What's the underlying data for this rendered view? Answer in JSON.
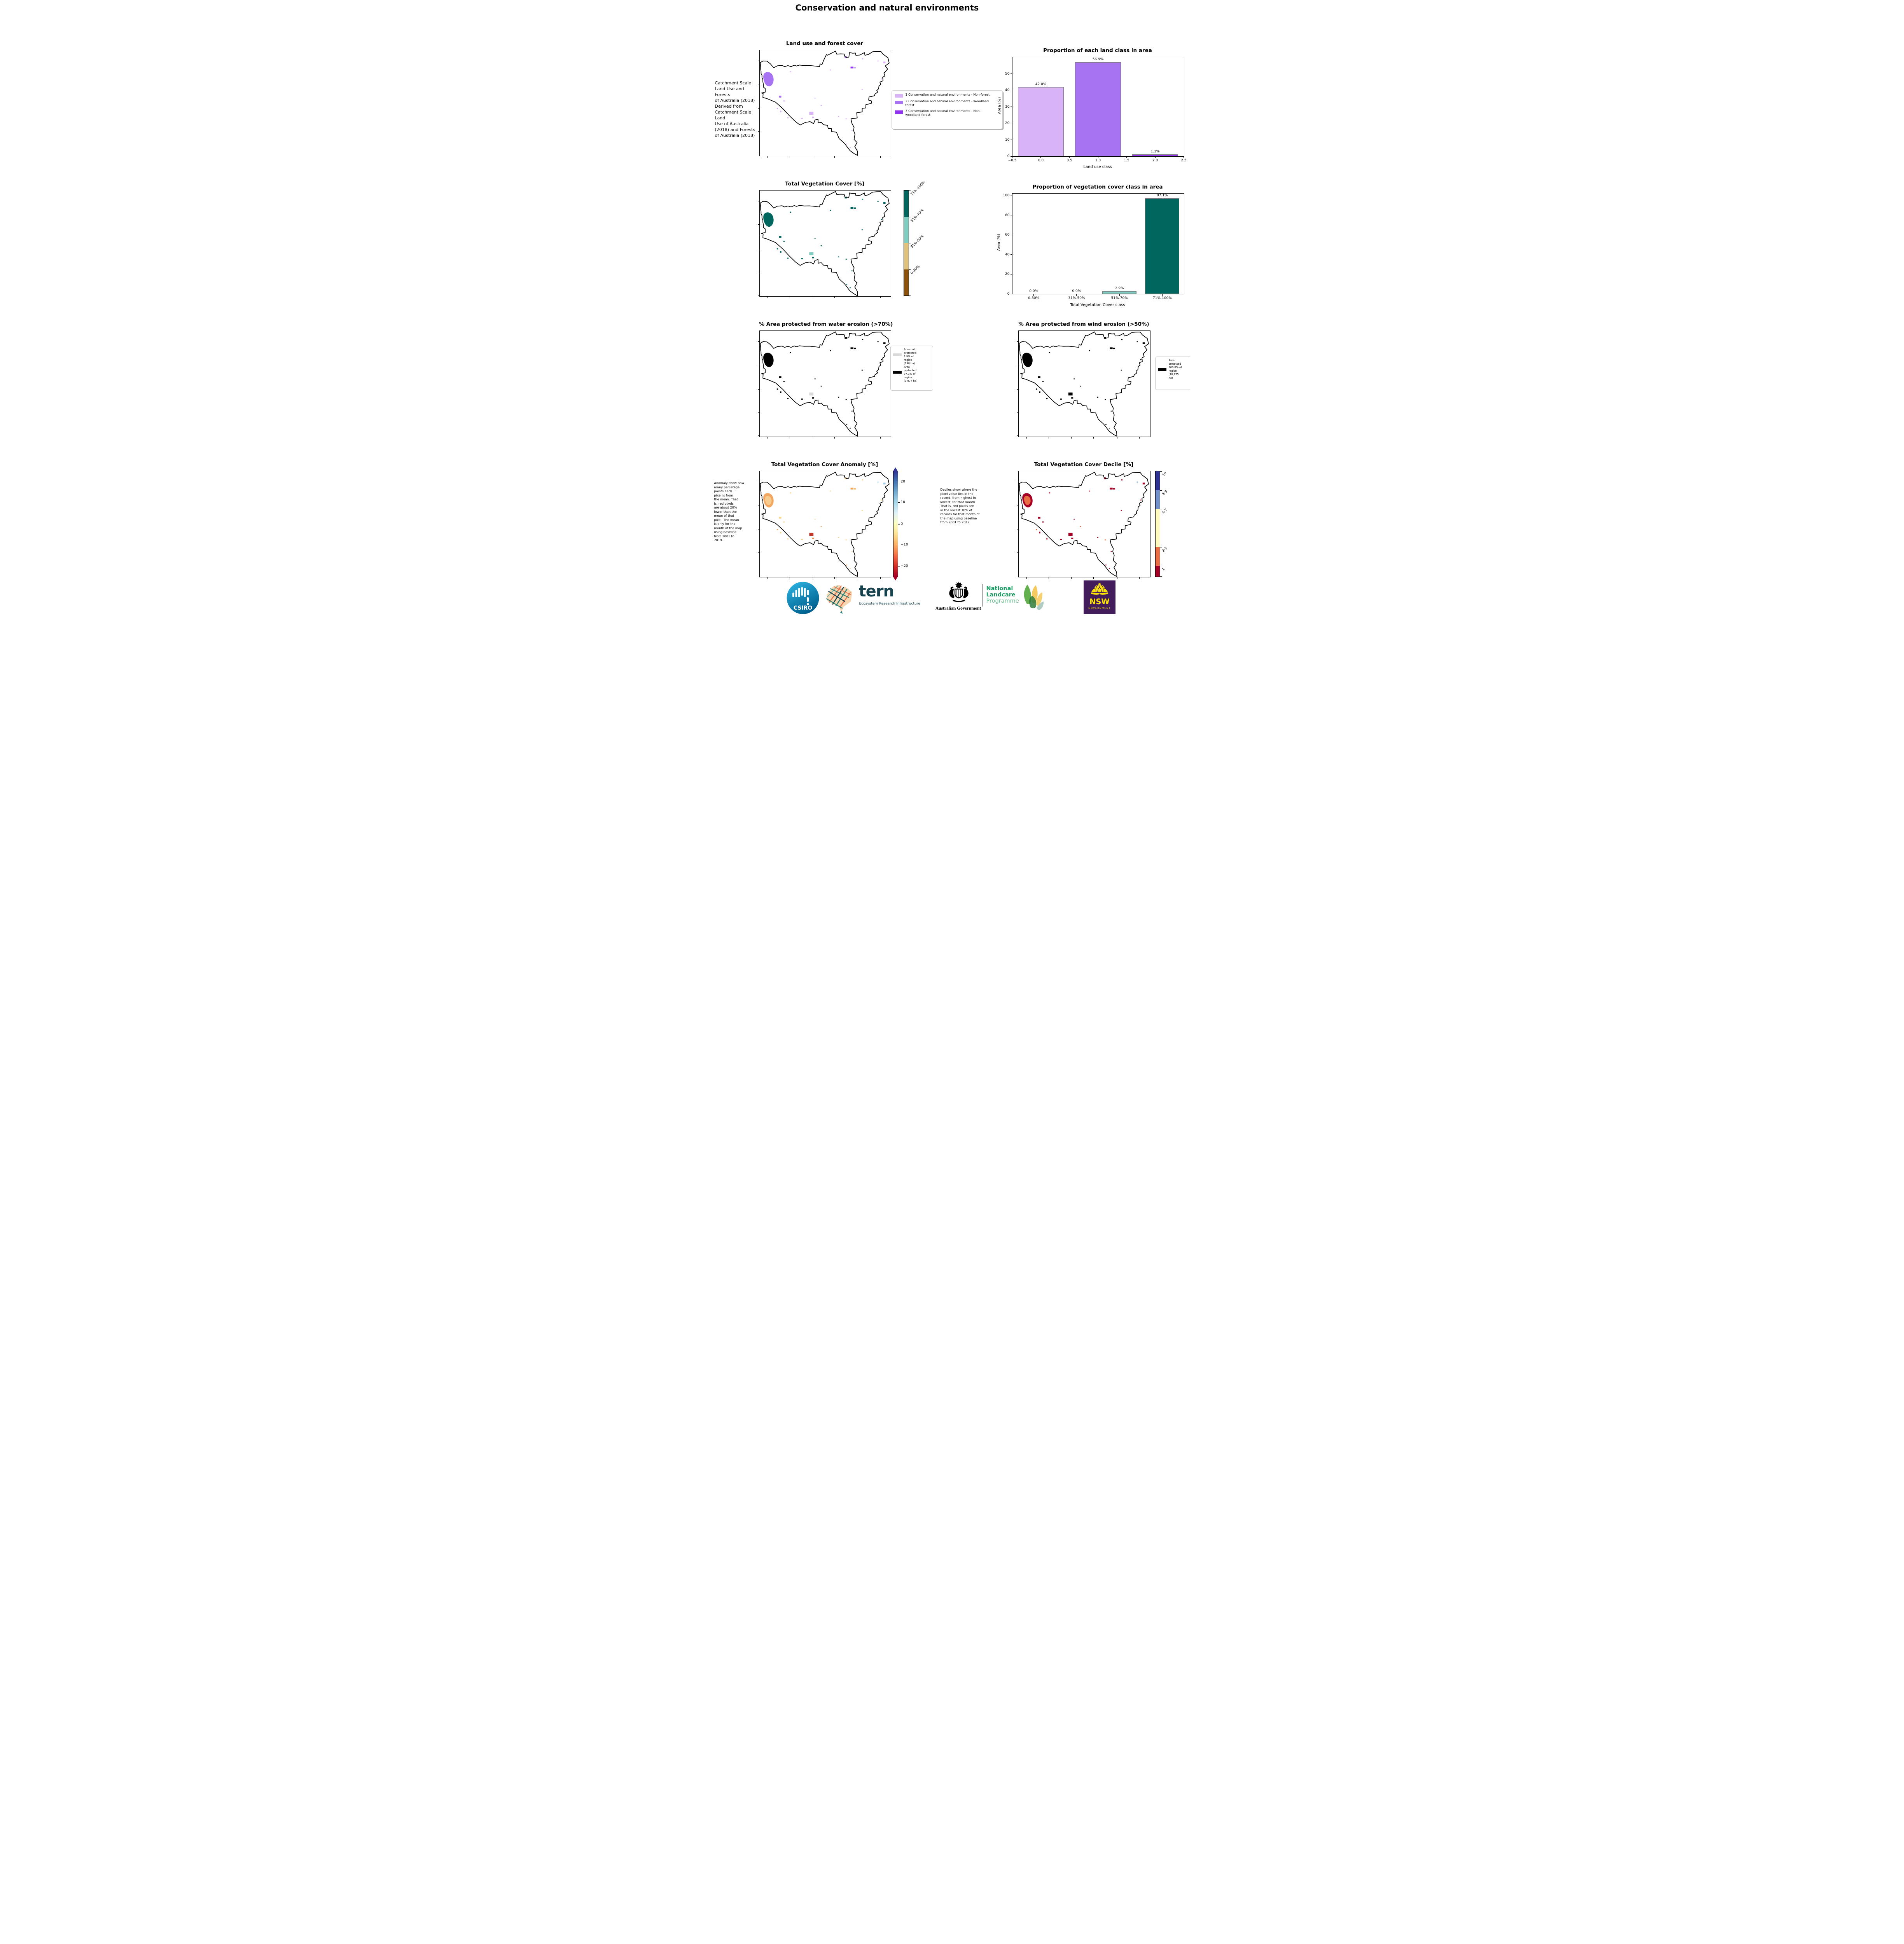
{
  "page": {
    "title": "Conservation and natural environments"
  },
  "maps": {
    "land_use": {
      "title": "Land use and forest cover",
      "note": " Catchment Scale\nLand Use and Forests\nof Australia (2018)\nDerived from\nCatchment Scale Land\nUse of Australia\n(2018) and Forests\nof Australia (2018)"
    },
    "veg_cover": {
      "title": "Total Vegetation Cover [%]"
    },
    "water": {
      "title": "% Area protected from water erosion (>70%)"
    },
    "wind": {
      "title": "% Area protected from wind erosion (>50%)"
    },
    "anomaly": {
      "title": "Total Vegetation Cover Anomaly [%]",
      "note": "Anomaly show how\nmany percetage\npoints each\npixel is from\nthe mean. That\nis, red pixels\nare about 20%\nlower than the\nmean of that\npixel. The mean\nis only for the\nmonth of the map\nusing baseline\nfrom 2001 to\n2019."
    },
    "decile": {
      "title": "Total Vegetation Cover Decile [%]",
      "note": "Deciles show where the\npixel value lies in the\nrecord, from highest to\nlowest, for that month.\nThat is, red pixels are\nin the lowest 10% of\nrecords for that month of\nthe map using baseline\nfrom 2001 to 2019."
    }
  },
  "legends": {
    "land_use": [
      {
        "label": "1 Conservation and natural environments - Non-forest",
        "color": "#d9b3f8"
      },
      {
        "label": "2 Conservation and natural environments - Woodland forest",
        "color": "#a873f2"
      },
      {
        "label": "3 Conservation and natural environments - Non-woodland forest",
        "color": "#9233ee"
      }
    ],
    "water": [
      {
        "label": "Area not\nprotected\n2.9% of\nregion\n(298 ha)",
        "color": "#d9d9d9"
      },
      {
        "label": "Area\nprotected\n97.1% of\nregion\n(9,977 ha)",
        "color": "#000000"
      }
    ],
    "wind": [
      {
        "label": "Area\nprotected\n100.0% of\nregion\n(10,275\nha)",
        "color": "#000000"
      }
    ]
  },
  "colorbars": {
    "veg_cover": {
      "segments": [
        {
          "label": "71%-100%",
          "color": "#01665e"
        },
        {
          "label": "51%-70%",
          "color": "#80cdc1"
        },
        {
          "label": "31%-50%",
          "color": "#dfc27d"
        },
        {
          "label": "0-30%",
          "color": "#8c510a"
        }
      ]
    },
    "anomaly": {
      "ticks": [
        "20",
        "10",
        "0",
        "−10",
        "−20"
      ],
      "tick_pos": [
        9.9,
        29.7,
        50,
        69.8,
        90.1
      ],
      "top_color": "#313695",
      "bottom_color": "#a50026"
    },
    "decile": {
      "segments": [
        {
          "label": "10",
          "color": "#2d3293",
          "size": 18
        },
        {
          "label": "8-9",
          "color": "#7191c8",
          "size": 17.7
        },
        {
          "label": "4-7",
          "color": "#fffbbf",
          "size": 36.1
        },
        {
          "label": "2-3",
          "color": "#ea6e43",
          "size": 18
        },
        {
          "label": "1",
          "color": "#a50026",
          "size": 10.2
        }
      ]
    }
  },
  "chart_data": [
    {
      "type": "bar",
      "title": "Proportion of each land class in area",
      "xlabel": "Land use class",
      "ylabel": "Area (%)",
      "x": [
        0,
        1,
        2
      ],
      "values": [
        42.0,
        56.9,
        1.1
      ],
      "bar_labels": [
        "42.0%",
        "56.9%",
        "1.1%"
      ],
      "bar_colors": [
        "#d9b3f8",
        "#a873f2",
        "#9233ee"
      ],
      "xlim": [
        -0.5,
        2.5
      ],
      "ylim": [
        0,
        60
      ],
      "xticks": [
        "−0.5",
        "0.0",
        "0.5",
        "1.0",
        "1.5",
        "2.0",
        "2.5"
      ],
      "yticks": [
        0,
        10,
        20,
        30,
        40,
        50
      ],
      "grid": false,
      "legend_position": "none"
    },
    {
      "type": "bar",
      "title": "Proportion of vegetation cover class in area",
      "xlabel": "Total Vegetation Cover class",
      "ylabel": "Area (%)",
      "categories": [
        "0-30%",
        "31%-50%",
        "51%-70%",
        "71%-100%"
      ],
      "values": [
        0.0,
        0.0,
        2.9,
        97.1
      ],
      "bar_labels": [
        "0.0%",
        "0.0%",
        "2.9%",
        "97.1%"
      ],
      "bar_colors": [
        "#8c510a",
        "#dfc27d",
        "#80cdc1",
        "#01665e"
      ],
      "ylim": [
        0,
        102
      ],
      "yticks": [
        0,
        20,
        40,
        60,
        80,
        100
      ],
      "grid": false,
      "legend_position": "none"
    }
  ],
  "logos": {
    "csiro": "CSIRO",
    "tern": "tern",
    "tern_sub": "Ecosystem Research Infrastructure",
    "aus_gov": "Australian Government",
    "landcare_1": "National",
    "landcare_2": "Landcare",
    "landcare_3": "Programme",
    "nsw": "NSW",
    "nsw_sub": "GOVERNMENT"
  }
}
